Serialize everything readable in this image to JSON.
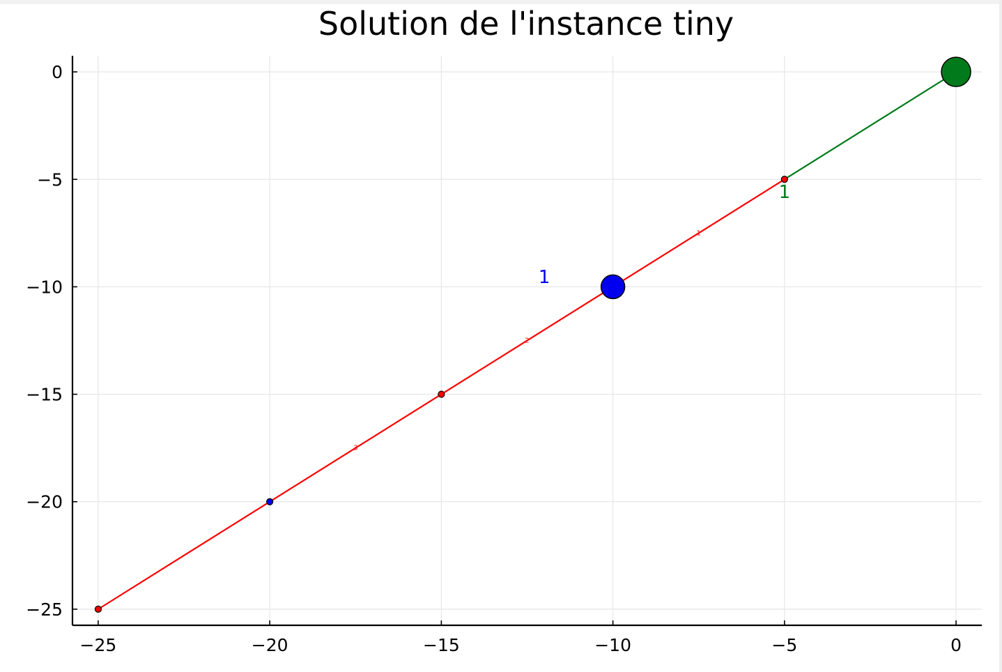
{
  "chart_data": {
    "type": "line",
    "title": "Solution de l'instance tiny",
    "xlabel": "",
    "ylabel": "",
    "xlim": [
      -25.75,
      0.75
    ],
    "ylim": [
      -25.75,
      0.75
    ],
    "x_ticks": [
      {
        "value": -25,
        "label": "−25"
      },
      {
        "value": -20,
        "label": "−20"
      },
      {
        "value": -15,
        "label": "−15"
      },
      {
        "value": -10,
        "label": "−10"
      },
      {
        "value": -5,
        "label": "−5"
      },
      {
        "value": 0,
        "label": "0"
      }
    ],
    "y_ticks": [
      {
        "value": 0,
        "label": "0"
      },
      {
        "value": -5,
        "label": "−5"
      },
      {
        "value": -10,
        "label": "−10"
      },
      {
        "value": -15,
        "label": "−15"
      },
      {
        "value": -20,
        "label": "−20"
      },
      {
        "value": -25,
        "label": "−25"
      }
    ],
    "grid": true,
    "legend": "none",
    "segments": [
      {
        "from": [
          0,
          0
        ],
        "to": [
          -5,
          -5
        ],
        "color": "#007a1a",
        "width": 2
      },
      {
        "from": [
          -5,
          -5
        ],
        "to": [
          -10,
          -10
        ],
        "color": "#ff0000",
        "width": 2
      },
      {
        "from": [
          -10,
          -10
        ],
        "to": [
          -15,
          -15
        ],
        "color": "#ff0000",
        "width": 2
      },
      {
        "from": [
          -15,
          -15
        ],
        "to": [
          -20,
          -20
        ],
        "color": "#ff0000",
        "width": 2
      },
      {
        "from": [
          -20,
          -20
        ],
        "to": [
          -25,
          -25
        ],
        "color": "#ff0000",
        "width": 2
      }
    ],
    "edge_labels": [
      {
        "text": "1",
        "x": -7.5,
        "y": -7.5,
        "color": "#ff0000",
        "size": "tiny"
      },
      {
        "text": "2",
        "x": -12.5,
        "y": -12.5,
        "color": "#ff0000",
        "size": "tiny"
      },
      {
        "text": "3",
        "x": -17.5,
        "y": -17.5,
        "color": "#ff0000",
        "size": "tiny"
      }
    ],
    "nodes": [
      {
        "x": 0,
        "y": 0,
        "color": "#007a1a",
        "kind": "depot",
        "size": "large"
      },
      {
        "x": -10,
        "y": -10,
        "color": "#0000ee",
        "kind": "facility",
        "size": "medium"
      },
      {
        "x": -5,
        "y": -5,
        "color": "#ff0000",
        "kind": "customer",
        "size": "small"
      },
      {
        "x": -15,
        "y": -15,
        "color": "#ff0000",
        "kind": "customer",
        "size": "small"
      },
      {
        "x": -20,
        "y": -20,
        "color": "#0000ee",
        "kind": "customer",
        "size": "small"
      },
      {
        "x": -25,
        "y": -25,
        "color": "#ff0000",
        "kind": "customer",
        "size": "small"
      }
    ],
    "node_labels": [
      {
        "text": "1",
        "x": -12,
        "y": -9.5,
        "color": "#0000ee"
      },
      {
        "text": "1",
        "x": -5,
        "y": -5.55,
        "color": "#007a1a"
      }
    ]
  }
}
